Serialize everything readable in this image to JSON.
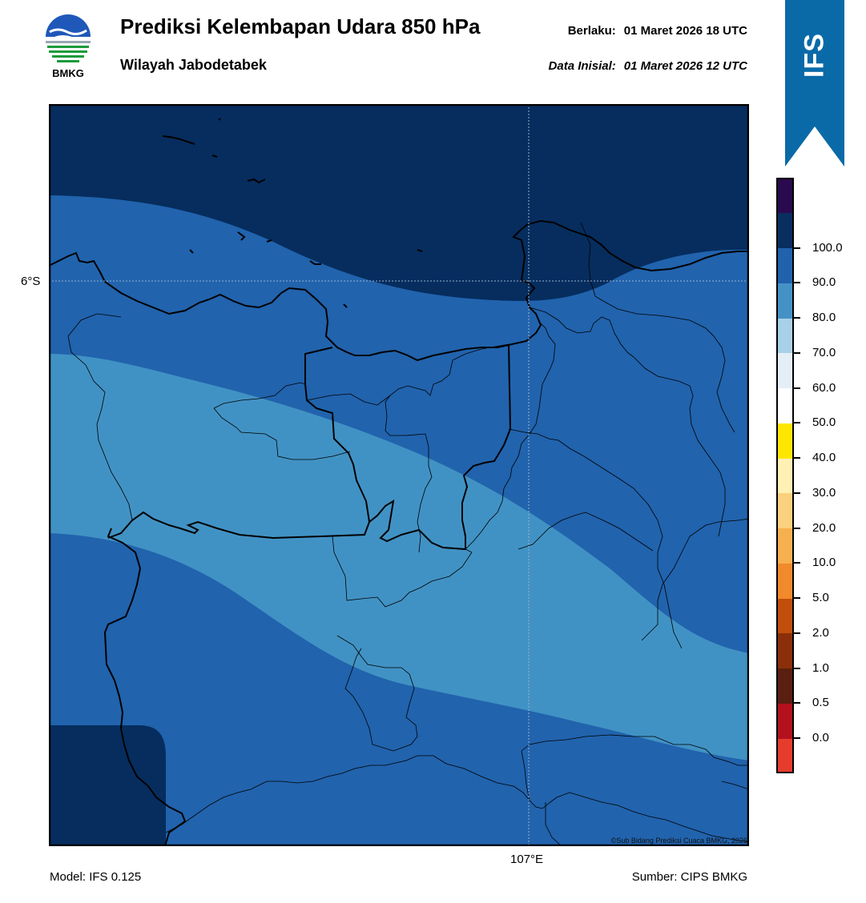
{
  "header": {
    "logo_text": "BMKG",
    "title": "Prediksi Kelembapan Udara 850 hPa",
    "subtitle": "Wilayah Jabodetabek",
    "valid_label": "Berlaku:",
    "valid_value": "01 Maret 2026 18 UTC",
    "init_label": "Data Inisial:",
    "init_value": "01 Maret 2026 12 UTC"
  },
  "banner": {
    "text": "IFS",
    "color": "#0a6aa8"
  },
  "map": {
    "lat_label": "6°S",
    "lon_label": "107°E",
    "credit": "©Sub Bidang Prediksi Cuaca BMKG, 2026",
    "fill_colors": {
      "band_90_100": "#062d5e",
      "band_80_90": "#2163ad",
      "band_70_80": "#4192c4"
    }
  },
  "footer": {
    "model": "Model: IFS 0.125",
    "source": "Sumber: CIPS BMKG"
  },
  "colorbar": {
    "segments": [
      "#e63c2e",
      "#b3111e",
      "#5a1f10",
      "#8a2f0a",
      "#c24e0b",
      "#f08a2a",
      "#f7b050",
      "#fbd07e",
      "#fff0b3",
      "#ffe600",
      "#ffffff",
      "#e4eef6",
      "#a8d0e6",
      "#4492c5",
      "#2162ac",
      "#092e60",
      "#2a0a4e"
    ],
    "labels": [
      "0.0",
      "0.5",
      "1.0",
      "2.0",
      "5.0",
      "10.0",
      "20.0",
      "30.0",
      "40.0",
      "50.0",
      "60.0",
      "70.0",
      "80.0",
      "90.0",
      "100.0"
    ]
  }
}
